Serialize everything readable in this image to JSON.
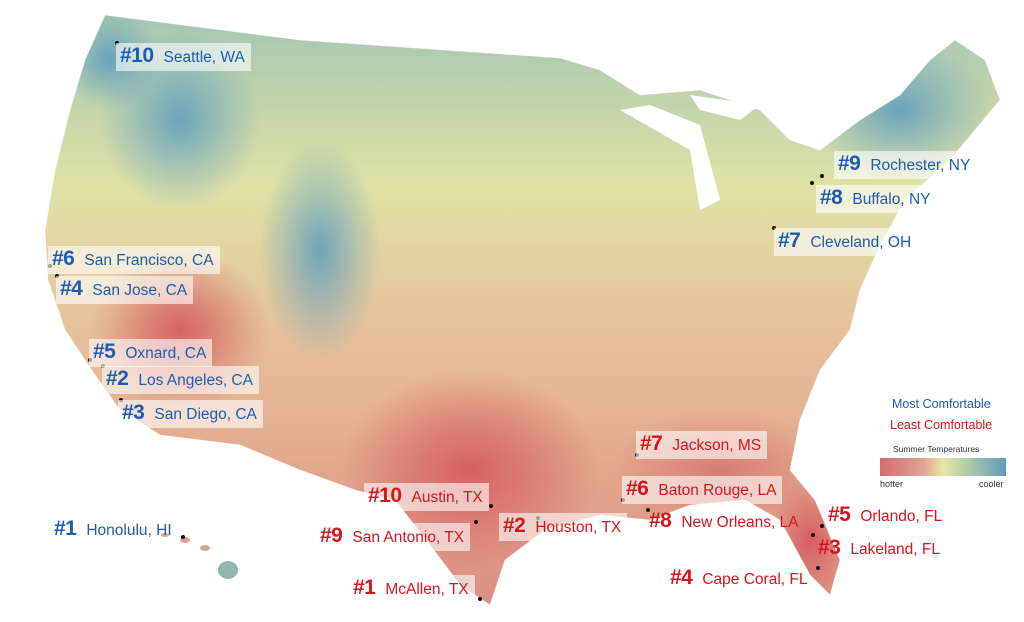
{
  "map": {
    "most_comfortable": [
      {
        "rank": "#1",
        "city": "Honolulu, HI"
      },
      {
        "rank": "#2",
        "city": "Los Angeles, CA"
      },
      {
        "rank": "#3",
        "city": "San Diego, CA"
      },
      {
        "rank": "#4",
        "city": "San Jose, CA"
      },
      {
        "rank": "#5",
        "city": "Oxnard, CA"
      },
      {
        "rank": "#6",
        "city": "San Francisco, CA"
      },
      {
        "rank": "#7",
        "city": "Cleveland, OH"
      },
      {
        "rank": "#8",
        "city": "Buffalo, NY"
      },
      {
        "rank": "#9",
        "city": "Rochester, NY"
      },
      {
        "rank": "#10",
        "city": "Seattle, WA"
      }
    ],
    "least_comfortable": [
      {
        "rank": "#1",
        "city": "McAllen, TX"
      },
      {
        "rank": "#2",
        "city": "Houston, TX"
      },
      {
        "rank": "#3",
        "city": "Lakeland, FL"
      },
      {
        "rank": "#4",
        "city": "Cape Coral, FL"
      },
      {
        "rank": "#5",
        "city": "Orlando, FL"
      },
      {
        "rank": "#6",
        "city": "Baton Rouge, LA"
      },
      {
        "rank": "#7",
        "city": "Jackson, MS"
      },
      {
        "rank": "#8",
        "city": "New Orleans, LA"
      },
      {
        "rank": "#9",
        "city": "San Antonio, TX"
      },
      {
        "rank": "#10",
        "city": "Austin, TX"
      }
    ]
  },
  "legend": {
    "most": "Most Comfortable",
    "least": "Least Comfortable",
    "title": "Summer Temperatures",
    "low": "hotter",
    "high": "cooler",
    "colors": {
      "hotter": "#d56a6c",
      "middle": "#e9e7a3",
      "cooler": "#5f9bbd",
      "most": "#1d5cb4",
      "least": "#d7151c"
    }
  }
}
